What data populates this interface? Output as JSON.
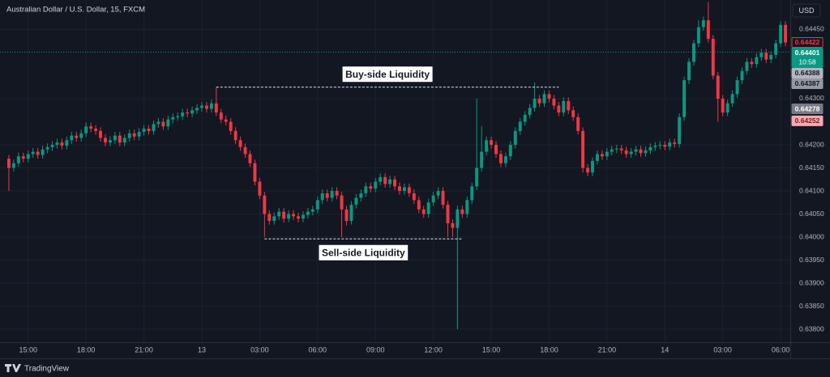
{
  "chart_data": {
    "type": "candlestick",
    "title": "Australian Dollar / U.S. Dollar, 15, FXCM",
    "currency": "USD",
    "brand": "TradingView",
    "up_color": "#089981",
    "down_color": "#f23645",
    "grid": true,
    "xlim": [
      -1,
      162
    ],
    "ylim": [
      0.63772,
      0.64514
    ],
    "yticks": [
      {
        "value": 0.6445,
        "label": "0.64450"
      },
      {
        "value": 0.643,
        "label": "0.64300"
      },
      {
        "value": 0.642,
        "label": "0.64200"
      },
      {
        "value": 0.6415,
        "label": "0.64150"
      },
      {
        "value": 0.641,
        "label": "0.64100"
      },
      {
        "value": 0.6405,
        "label": "0.64050"
      },
      {
        "value": 0.64,
        "label": "0.64000"
      },
      {
        "value": 0.6395,
        "label": "0.63950"
      },
      {
        "value": 0.639,
        "label": "0.63900"
      },
      {
        "value": 0.6385,
        "label": "0.63850"
      },
      {
        "value": 0.638,
        "label": "0.63800"
      }
    ],
    "xticks": [
      {
        "value": 4,
        "label": "15:00"
      },
      {
        "value": 16,
        "label": "18:00"
      },
      {
        "value": 28,
        "label": "21:00"
      },
      {
        "value": 40,
        "label": "13"
      },
      {
        "value": 52,
        "label": "03:00"
      },
      {
        "value": 64,
        "label": "06:00"
      },
      {
        "value": 76,
        "label": "09:00"
      },
      {
        "value": 88,
        "label": "12:00"
      },
      {
        "value": 100,
        "label": "15:00"
      },
      {
        "value": 112,
        "label": "18:00"
      },
      {
        "value": 124,
        "label": "21:00"
      },
      {
        "value": 136,
        "label": "14"
      },
      {
        "value": 148,
        "label": "03:00"
      },
      {
        "value": 160,
        "label": "06:00"
      }
    ],
    "price_labels": [
      {
        "value": 0.64422,
        "label": "0.64422",
        "bg": "#131722",
        "fg": "#f23645"
      },
      {
        "value": 0.64401,
        "label": "0.64401",
        "sublabel": "10:58",
        "bg": "#089981",
        "fg": "#ffffff"
      },
      {
        "value": 0.64388,
        "label": "0.64388",
        "bg": "#b2b5be",
        "fg": "#131722"
      },
      {
        "value": 0.64387,
        "label": "0.64387",
        "bg": "#9598a1",
        "fg": "#131722"
      },
      {
        "value": 0.64278,
        "label": "0.64278",
        "bg": "#787b86",
        "fg": "#ffffff"
      },
      {
        "value": 0.64252,
        "label": "0.64252",
        "bg": "#f7a9b0",
        "fg": "#801922"
      }
    ],
    "annotations": [
      {
        "text": "Buy-side Liquidity",
        "level": 0.64325
      },
      {
        "text": "Sell-side Liquidity",
        "level": 0.63996
      }
    ],
    "open": [
      0.6417,
      0.6415,
      0.6416,
      0.64175,
      0.6417,
      0.6418,
      0.64185,
      0.64178,
      0.6419,
      0.64195,
      0.642,
      0.64205,
      0.64198,
      0.6421,
      0.6422,
      0.64215,
      0.64225,
      0.6424,
      0.64235,
      0.6423,
      0.64215,
      0.64205,
      0.6421,
      0.6422,
      0.64205,
      0.64215,
      0.64225,
      0.64218,
      0.64228,
      0.64235,
      0.6423,
      0.64245,
      0.6425,
      0.6424,
      0.64255,
      0.6426,
      0.64262,
      0.6427,
      0.64268,
      0.64275,
      0.6428,
      0.64285,
      0.64278,
      0.6429,
      0.6427,
      0.64255,
      0.6425,
      0.6423,
      0.6421,
      0.64195,
      0.6418,
      0.6416,
      0.6412,
      0.6409,
      0.6405,
      0.64035,
      0.64045,
      0.64055,
      0.6404,
      0.6405,
      0.64045,
      0.6404,
      0.64048,
      0.64055,
      0.6406,
      0.6408,
      0.64095,
      0.64085,
      0.641,
      0.6409,
      0.6406,
      0.64035,
      0.6407,
      0.64085,
      0.64095,
      0.6411,
      0.64105,
      0.6412,
      0.6413,
      0.64115,
      0.64125,
      0.6411,
      0.641,
      0.64108,
      0.64095,
      0.6408,
      0.6406,
      0.6405,
      0.64075,
      0.6409,
      0.641,
      0.6407,
      0.6403,
      0.6402,
      0.6406,
      0.6405,
      0.6408,
      0.6411,
      0.6415,
      0.64185,
      0.6421,
      0.642,
      0.6418,
      0.6416,
      0.64175,
      0.642,
      0.6423,
      0.6425,
      0.64265,
      0.6428,
      0.643,
      0.6429,
      0.6431,
      0.643,
      0.64285,
      0.6427,
      0.64295,
      0.64275,
      0.6426,
      0.6423,
      0.6415,
      0.6414,
      0.64165,
      0.6418,
      0.64175,
      0.64185,
      0.6419,
      0.64192,
      0.64188,
      0.6418,
      0.64185,
      0.6419,
      0.64182,
      0.64188,
      0.64195,
      0.64198,
      0.642,
      0.64196,
      0.64205,
      0.64202,
      0.6426,
      0.6434,
      0.6438,
      0.6442,
      0.64455,
      0.6447,
      0.6443,
      0.6435,
      0.643,
      0.6427,
      0.6429,
      0.6431,
      0.6434,
      0.6436,
      0.6438,
      0.64375,
      0.6439,
      0.644,
      0.64385,
      0.64395,
      0.6442,
      0.6446
    ],
    "high": [
      0.64178,
      0.64168,
      0.64183,
      0.64183,
      0.64188,
      0.64193,
      0.64193,
      0.64198,
      0.64203,
      0.64208,
      0.64213,
      0.64213,
      0.64218,
      0.64228,
      0.64228,
      0.64233,
      0.64248,
      0.64248,
      0.64243,
      0.64238,
      0.64223,
      0.64218,
      0.64228,
      0.64228,
      0.64223,
      0.64233,
      0.64233,
      0.64236,
      0.64243,
      0.64243,
      0.64253,
      0.64258,
      0.64258,
      0.64263,
      0.64268,
      0.6427,
      0.64278,
      0.64278,
      0.64283,
      0.64288,
      0.64293,
      0.64293,
      0.64298,
      0.64325,
      0.64278,
      0.64263,
      0.64258,
      0.64238,
      0.64218,
      0.64203,
      0.64188,
      0.64168,
      0.64128,
      0.64098,
      0.64058,
      0.64053,
      0.64063,
      0.64063,
      0.64058,
      0.64058,
      0.64053,
      0.64056,
      0.64063,
      0.64068,
      0.64088,
      0.64103,
      0.64103,
      0.64108,
      0.64108,
      0.64098,
      0.64068,
      0.64078,
      0.64093,
      0.64103,
      0.64118,
      0.64118,
      0.64128,
      0.64138,
      0.64138,
      0.64133,
      0.64133,
      0.64118,
      0.64116,
      0.64116,
      0.64103,
      0.64088,
      0.64068,
      0.64083,
      0.64098,
      0.64108,
      0.64108,
      0.64078,
      0.64038,
      0.64068,
      0.64068,
      0.64088,
      0.64118,
      0.643,
      0.6424,
      0.64218,
      0.64218,
      0.64208,
      0.64188,
      0.64183,
      0.64208,
      0.64238,
      0.64258,
      0.64273,
      0.64288,
      0.64335,
      0.64308,
      0.64318,
      0.64318,
      0.64308,
      0.64293,
      0.64303,
      0.64303,
      0.64283,
      0.64268,
      0.64238,
      0.64158,
      0.64173,
      0.64188,
      0.64188,
      0.64193,
      0.64198,
      0.642,
      0.642,
      0.64196,
      0.64193,
      0.64198,
      0.64198,
      0.64196,
      0.64203,
      0.64206,
      0.64208,
      0.64208,
      0.64213,
      0.64213,
      0.64268,
      0.64348,
      0.64388,
      0.64428,
      0.6447,
      0.64478,
      0.6451,
      0.64438,
      0.64358,
      0.64308,
      0.64298,
      0.64318,
      0.64348,
      0.64368,
      0.64388,
      0.64388,
      0.64398,
      0.64408,
      0.64408,
      0.64403,
      0.64428,
      0.64468,
      0.64468
    ],
    "low": [
      0.641,
      0.64142,
      0.64152,
      0.64162,
      0.64162,
      0.64172,
      0.6417,
      0.6417,
      0.64182,
      0.64187,
      0.64192,
      0.6419,
      0.6419,
      0.64202,
      0.64207,
      0.64207,
      0.64217,
      0.64227,
      0.64222,
      0.64207,
      0.64197,
      0.64197,
      0.64202,
      0.64197,
      0.64197,
      0.64207,
      0.6421,
      0.6421,
      0.6422,
      0.64222,
      0.64222,
      0.64237,
      0.64232,
      0.64232,
      0.64247,
      0.64252,
      0.64254,
      0.6426,
      0.6426,
      0.64267,
      0.64272,
      0.6427,
      0.6427,
      0.64262,
      0.64247,
      0.64242,
      0.64222,
      0.64202,
      0.64187,
      0.64172,
      0.64152,
      0.64112,
      0.64082,
      0.64,
      0.64027,
      0.64027,
      0.64037,
      0.64032,
      0.64032,
      0.64037,
      0.64032,
      0.64032,
      0.6404,
      0.64047,
      0.64052,
      0.64072,
      0.64077,
      0.64077,
      0.64082,
      0.64,
      0.64025,
      0.64027,
      0.64062,
      0.64077,
      0.64087,
      0.64097,
      0.64097,
      0.64112,
      0.64107,
      0.64107,
      0.64102,
      0.64092,
      0.64092,
      0.64087,
      0.64072,
      0.64052,
      0.64042,
      0.64042,
      0.64067,
      0.64082,
      0.64062,
      0.64,
      0.64,
      0.638,
      0.64042,
      0.64042,
      0.64072,
      0.64102,
      0.64142,
      0.64177,
      0.64192,
      0.64172,
      0.64152,
      0.64152,
      0.64167,
      0.64192,
      0.64222,
      0.64242,
      0.64257,
      0.64272,
      0.64282,
      0.64282,
      0.64292,
      0.64277,
      0.64262,
      0.64262,
      0.64267,
      0.64252,
      0.64222,
      0.6414,
      0.64132,
      0.64132,
      0.64157,
      0.64167,
      0.64167,
      0.64177,
      0.64182,
      0.6418,
      0.64172,
      0.64172,
      0.64177,
      0.64174,
      0.64174,
      0.6418,
      0.64187,
      0.6419,
      0.64188,
      0.64188,
      0.64194,
      0.64194,
      0.64252,
      0.64332,
      0.64372,
      0.64412,
      0.64447,
      0.64422,
      0.64342,
      0.6425,
      0.64262,
      0.64262,
      0.64282,
      0.64302,
      0.64332,
      0.64352,
      0.64367,
      0.64367,
      0.64382,
      0.64377,
      0.64377,
      0.64387,
      0.64412,
      0.64414
    ],
    "close": [
      0.6415,
      0.6416,
      0.64175,
      0.6417,
      0.6418,
      0.64185,
      0.64178,
      0.6419,
      0.64195,
      0.642,
      0.64205,
      0.64198,
      0.6421,
      0.6422,
      0.64215,
      0.64225,
      0.6424,
      0.64235,
      0.6423,
      0.64215,
      0.64205,
      0.6421,
      0.6422,
      0.64205,
      0.64215,
      0.64225,
      0.64218,
      0.64228,
      0.64235,
      0.6423,
      0.64245,
      0.6425,
      0.6424,
      0.64255,
      0.6426,
      0.64262,
      0.6427,
      0.64268,
      0.64275,
      0.6428,
      0.64285,
      0.64278,
      0.6429,
      0.6427,
      0.64255,
      0.6425,
      0.6423,
      0.6421,
      0.64195,
      0.6418,
      0.6416,
      0.6412,
      0.6409,
      0.6405,
      0.64035,
      0.64045,
      0.64055,
      0.6404,
      0.6405,
      0.64045,
      0.6404,
      0.64048,
      0.64055,
      0.6406,
      0.6408,
      0.64095,
      0.64085,
      0.641,
      0.6409,
      0.6406,
      0.64035,
      0.6407,
      0.64085,
      0.64095,
      0.6411,
      0.64105,
      0.6412,
      0.6413,
      0.64115,
      0.64125,
      0.6411,
      0.641,
      0.64108,
      0.64095,
      0.6408,
      0.6406,
      0.6405,
      0.64075,
      0.6409,
      0.641,
      0.6407,
      0.6403,
      0.6402,
      0.6406,
      0.6405,
      0.6408,
      0.6411,
      0.6415,
      0.64185,
      0.6421,
      0.642,
      0.6418,
      0.6416,
      0.64175,
      0.642,
      0.6423,
      0.6425,
      0.64265,
      0.6428,
      0.643,
      0.6429,
      0.6431,
      0.643,
      0.64285,
      0.6427,
      0.64295,
      0.64275,
      0.6426,
      0.6423,
      0.6415,
      0.6414,
      0.64165,
      0.6418,
      0.64175,
      0.64185,
      0.6419,
      0.64192,
      0.64188,
      0.6418,
      0.64185,
      0.6419,
      0.64182,
      0.64188,
      0.64195,
      0.64198,
      0.642,
      0.64196,
      0.64205,
      0.64202,
      0.6426,
      0.6434,
      0.6438,
      0.6442,
      0.64455,
      0.6447,
      0.6443,
      0.6435,
      0.643,
      0.6427,
      0.6429,
      0.6431,
      0.6434,
      0.6436,
      0.6438,
      0.64375,
      0.6439,
      0.644,
      0.64385,
      0.64395,
      0.6442,
      0.6446,
      0.64422
    ]
  }
}
